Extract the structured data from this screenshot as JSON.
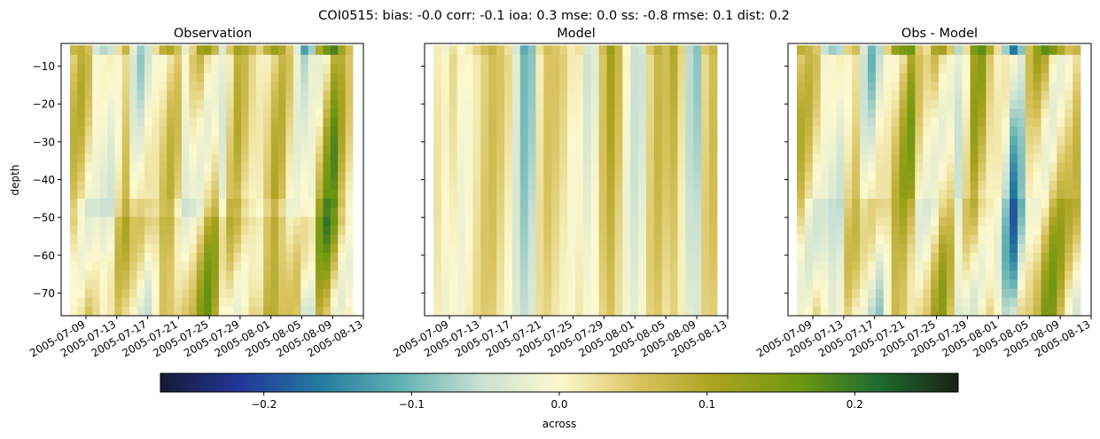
{
  "suptitle": "COI0515: bias: -0.0  corr: -0.1  ioa: 0.3  mse: 0.0  ss: -0.8  rmse: 0.1  dist: 0.2",
  "chart_data": [
    {
      "type": "heatmap",
      "title": "Observation",
      "ylabel": "depth",
      "xlabel": "",
      "y_ticks": [
        -10,
        -20,
        -30,
        -40,
        -50,
        -60,
        -70
      ],
      "x_ticks": [
        "2005-07-09",
        "2005-07-13",
        "2005-07-17",
        "2005-07-21",
        "2005-07-25",
        "2005-07-29",
        "2005-08-01",
        "2005-08-05",
        "2005-08-09",
        "2005-08-13"
      ],
      "ylim": [
        -76,
        -4
      ],
      "vlim": [
        -0.27,
        0.27
      ],
      "col_amps": [
        0.06,
        0.07,
        0.05,
        -0.03,
        -0.05,
        -0.04,
        0.02,
        0.06,
        -0.02,
        -0.06,
        -0.04,
        0.02,
        0.07,
        0.08,
        0.05,
        -0.02,
        0.03,
        0.09,
        0.1,
        0.06,
        -0.03,
        0.04,
        0.09,
        0.08,
        0.06,
        0.03,
        0.07,
        0.1,
        0.08,
        0.04,
        -0.02,
        -0.1,
        -0.06,
        0.08,
        0.13,
        0.15,
        0.09,
        0.05
      ]
    },
    {
      "type": "heatmap",
      "title": "Model",
      "ylabel": "",
      "xlabel": "",
      "y_ticks": [],
      "x_ticks": [
        "2005-07-09",
        "2005-07-13",
        "2005-07-17",
        "2005-07-21",
        "2005-07-25",
        "2005-07-29",
        "2005-08-01",
        "2005-08-05",
        "2005-08-09",
        "2005-08-13"
      ],
      "ylim": [
        -76,
        -4
      ],
      "vlim": [
        -0.27,
        0.27
      ],
      "col_amps": [
        0.01,
        -0.01,
        0.02,
        0.0,
        0.01,
        0.03,
        0.05,
        0.06,
        0.04,
        0.02,
        -0.03,
        -0.09,
        -0.07,
        0.02,
        0.05,
        0.04,
        0.03,
        0.01,
        0.02,
        -0.03,
        -0.02,
        0.05,
        0.1,
        0.06,
        0.0,
        -0.04,
        -0.03,
        0.04,
        0.07,
        0.05,
        0.08,
        0.03,
        -0.05,
        -0.07,
        0.04,
        0.06
      ]
    },
    {
      "type": "heatmap",
      "title": "Obs - Model",
      "ylabel": "",
      "xlabel": "",
      "y_ticks": [],
      "x_ticks": [
        "2005-07-09",
        "2005-07-13",
        "2005-07-17",
        "2005-07-21",
        "2005-07-25",
        "2005-07-29",
        "2005-08-01",
        "2005-08-05",
        "2005-08-09",
        "2005-08-13"
      ],
      "ylim": [
        -76,
        -4
      ],
      "vlim": [
        -0.27,
        0.27
      ],
      "col_amps": [
        0.07,
        0.06,
        0.04,
        -0.04,
        -0.06,
        -0.05,
        0.03,
        0.05,
        -0.03,
        -0.08,
        -0.05,
        0.03,
        0.1,
        0.12,
        0.13,
        0.04,
        0.02,
        0.08,
        0.09,
        0.04,
        -0.05,
        0.02,
        0.12,
        0.14,
        0.08,
        0.02,
        -0.06,
        -0.13,
        -0.07,
        0.05,
        0.1,
        0.14,
        0.12,
        0.08,
        0.05,
        0.06
      ]
    }
  ],
  "colorbar": {
    "label": "across",
    "ticks": [
      -0.2,
      -0.1,
      0.0,
      0.1,
      0.2
    ],
    "tick_labels": [
      "−0.2",
      "−0.1",
      "0.0",
      "0.1",
      "0.2"
    ],
    "vlim": [
      -0.27,
      0.27
    ],
    "colors": [
      "#161a33",
      "#223699",
      "#247a9f",
      "#5fb1b3",
      "#c8e0d3",
      "#fdf9cf",
      "#d9c35f",
      "#a8a21e",
      "#6f9710",
      "#1e6b30",
      "#1a2114"
    ]
  }
}
